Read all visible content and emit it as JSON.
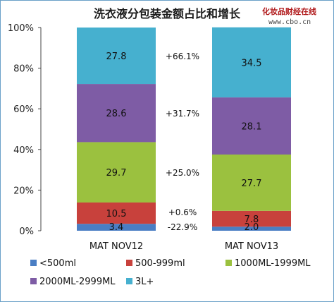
{
  "chart_data": {
    "type": "bar",
    "stacked": true,
    "title": "洗衣液分包装金额占比和增长",
    "categories": [
      "MAT NOV12",
      "MAT NOV13"
    ],
    "ylim": [
      0,
      100
    ],
    "yticks": [
      "0%",
      "20%",
      "40%",
      "60%",
      "80%",
      "100%"
    ],
    "grid": false,
    "legend_position": "bottom",
    "series": [
      {
        "name": "<500ml",
        "color": "#4a7ec4",
        "values": [
          3.4,
          2.0
        ],
        "labels": [
          "3.4",
          "2.0"
        ]
      },
      {
        "name": "500-999ml",
        "color": "#c8413c",
        "values": [
          10.5,
          7.8
        ],
        "labels": [
          "10.5",
          "7.8"
        ]
      },
      {
        "name": "1000ML-1999ML",
        "color": "#9bc13f",
        "values": [
          29.7,
          27.7
        ],
        "labels": [
          "29.7",
          "27.7"
        ]
      },
      {
        "name": "2000ML-2999ML",
        "color": "#7e5ca5",
        "values": [
          28.6,
          28.1
        ],
        "labels": [
          "28.6",
          "28.1"
        ]
      },
      {
        "name": "3L+",
        "color": "#46b0cf",
        "values": [
          27.8,
          34.5
        ],
        "labels": [
          "27.8",
          "34.5"
        ]
      }
    ],
    "annotations": [
      {
        "series": "<500ml",
        "text": "-22.9%",
        "color": "#d02020"
      },
      {
        "series": "500-999ml",
        "text": "+0.6%",
        "color": "#111111"
      },
      {
        "series": "1000ML-1999ML",
        "text": "+25.0%",
        "color": "#111111"
      },
      {
        "series": "2000ML-2999ML",
        "text": "+31.7%",
        "color": "#111111"
      },
      {
        "series": "3L+",
        "text": "+66.1%",
        "color": "#111111"
      }
    ]
  },
  "watermark": {
    "name": "化妆品财经在线",
    "url": "www.cbo.cn"
  }
}
